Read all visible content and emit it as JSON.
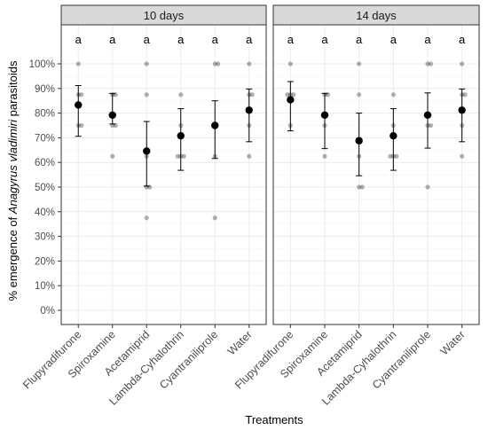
{
  "chart_data": {
    "type": "scatter",
    "xlabel": "Treatments",
    "ylabel_parts": [
      "% emergence of ",
      "Anagyrus vladimiri",
      " parasitoids"
    ],
    "ylim": [
      0,
      100
    ],
    "ytick_labels": [
      "0%",
      "10%",
      "20%",
      "30%",
      "40%",
      "50%",
      "60%",
      "70%",
      "80%",
      "90%",
      "100%"
    ],
    "yticks": [
      0,
      10,
      20,
      30,
      40,
      50,
      60,
      70,
      80,
      90,
      100
    ],
    "categories": [
      "Flupyradifurone",
      "Spiroxamine",
      "Acetamiprid",
      "Lambda-Cyhalothrin",
      "Cyantraniliprole",
      "Water"
    ],
    "grid": true,
    "facets": [
      {
        "label": "10 days",
        "letters": [
          "a",
          "a",
          "a",
          "a",
          "a",
          "a"
        ],
        "means": [
          83.3,
          79.2,
          64.6,
          70.8,
          75.0,
          81.2
        ],
        "ci_low": [
          70.6,
          75.6,
          50.4,
          56.8,
          61.6,
          68.4
        ],
        "ci_high": [
          91.2,
          88.0,
          76.6,
          81.8,
          85.0,
          89.8
        ],
        "raw": [
          [
            100,
            87.5,
            87.5,
            75,
            75
          ],
          [
            87.5,
            87.5,
            75,
            75,
            62.5
          ],
          [
            100,
            87.5,
            62.5,
            50,
            50,
            37.5
          ],
          [
            87.5,
            75,
            62.5,
            62.5,
            62.5
          ],
          [
            100,
            100,
            62.5,
            37.5
          ],
          [
            100,
            87.5,
            87.5,
            75,
            62.5
          ]
        ]
      },
      {
        "label": "14 days",
        "letters": [
          "a",
          "a",
          "a",
          "a",
          "a",
          "a"
        ],
        "means": [
          85.4,
          79.2,
          68.8,
          70.8,
          79.2,
          81.2
        ],
        "ci_low": [
          72.8,
          65.6,
          54.6,
          56.8,
          65.8,
          68.4
        ],
        "ci_high": [
          92.8,
          88.0,
          80.0,
          81.8,
          88.2,
          89.8
        ],
        "raw": [
          [
            100,
            87.5,
            87.5,
            87.5,
            75
          ],
          [
            87.5,
            87.5,
            75,
            62.5
          ],
          [
            100,
            87.5,
            62.5,
            50,
            50
          ],
          [
            87.5,
            75,
            62.5,
            62.5,
            62.5
          ],
          [
            100,
            100,
            75,
            75,
            50
          ],
          [
            100,
            87.5,
            87.5,
            75,
            62.5
          ]
        ]
      }
    ]
  }
}
